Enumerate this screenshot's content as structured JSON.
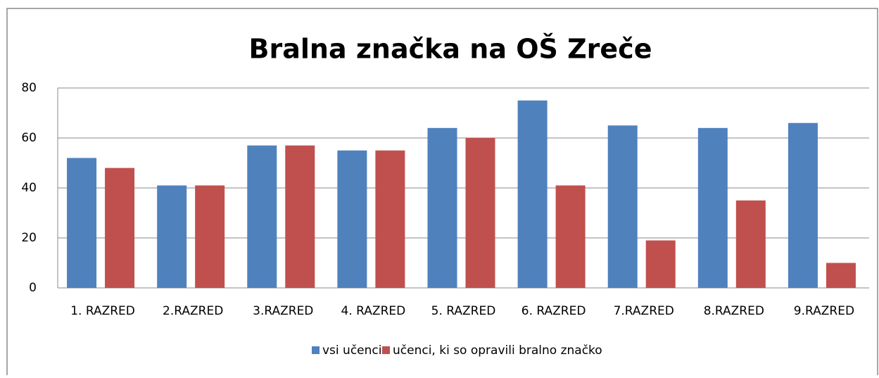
{
  "chart_data": {
    "type": "bar",
    "title": "Bralna značka na OŠ Zreče",
    "categories": [
      "1. RAZRED",
      "2.RAZRED",
      "3.RAZRED",
      "4. RAZRED",
      "5. RAZRED",
      "6. RAZRED",
      "7.RAZRED",
      "8.RAZRED",
      "9.RAZRED"
    ],
    "series": [
      {
        "name": "vsi učenci",
        "color": "#4f81bd",
        "values": [
          52,
          41,
          57,
          55,
          64,
          75,
          65,
          64,
          66
        ]
      },
      {
        "name": "učenci, ki so opravili bralno značko",
        "color": "#c0504d",
        "values": [
          48,
          41,
          57,
          55,
          60,
          41,
          19,
          35,
          10
        ]
      }
    ],
    "ylim": [
      0,
      80
    ],
    "yticks": [
      0,
      20,
      40,
      60,
      80
    ],
    "grid": true,
    "legend": "bottom"
  }
}
